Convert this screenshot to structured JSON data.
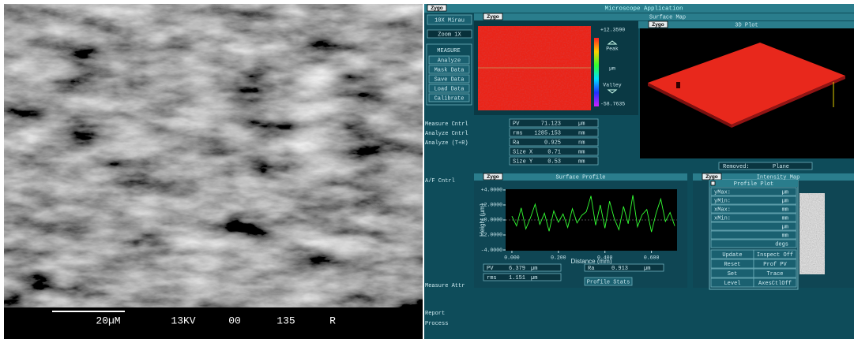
{
  "sem": {
    "labels": [
      "20µM",
      "13KV",
      "00",
      "135",
      "R"
    ]
  },
  "app": {
    "title": "Microscope Application",
    "logo": "Zygo"
  },
  "sidebar": {
    "objective": "10X  Mirau",
    "zoom": "Zoom   1X",
    "measure_group": [
      "MEASURE",
      "Analyze",
      "Mask Data",
      "Save Data",
      "Load Data",
      "Calibrate"
    ],
    "controls": [
      "Measure Cntrl",
      "Analyze Cntrl",
      "Analyze (T+R)",
      "A/F Cntrl",
      "Measure Attr",
      "Report",
      "Process"
    ]
  },
  "surface_map": {
    "title": "Surface Map",
    "scale_max": "+12.3590",
    "peak": "Peak",
    "unit": "µm",
    "valley": "Valley",
    "scale_min": "-58.7635"
  },
  "results": [
    {
      "label": "PV",
      "value": 71.123,
      "unit": "µm"
    },
    {
      "label": "rms",
      "value": 1285.153,
      "unit": "nm"
    },
    {
      "label": "Ra",
      "value": 0.925,
      "unit": "nm"
    },
    {
      "label": "Size X",
      "value": 0.71,
      "unit": "mm"
    },
    {
      "label": "Size Y",
      "value": 0.53,
      "unit": "mm"
    }
  ],
  "plot3d": {
    "title": "3D Plot"
  },
  "removed": {
    "label": "Removed:",
    "value": "Plane"
  },
  "surface_profile": {
    "title": "Surface Profile",
    "ylabel": "Height (µm)",
    "xlabel": "Distance (mm)",
    "xlim": [
      -0.027,
      0.71
    ],
    "ylim": [
      -4.1,
      4.1
    ],
    "xticks": [
      {
        "value": 0,
        "label": "0.000"
      },
      {
        "value": 0.2,
        "label": "0.200"
      },
      {
        "value": 0.4,
        "label": "0.400"
      },
      {
        "value": 0.6,
        "label": "0.600"
      }
    ],
    "yticks": [
      {
        "value": 4,
        "label": "+4.0000"
      },
      {
        "value": 2,
        "label": "+2.0000"
      },
      {
        "value": 0,
        "label": "+0.0000"
      },
      {
        "value": -2,
        "label": "-2.0000"
      },
      {
        "value": -4,
        "label": "-4.0000"
      }
    ],
    "color": "#33ff33",
    "x": [
      0,
      0.02,
      0.04,
      0.06,
      0.08,
      0.1,
      0.12,
      0.14,
      0.16,
      0.18,
      0.2,
      0.22,
      0.24,
      0.26,
      0.28,
      0.3,
      0.32,
      0.34,
      0.36,
      0.38,
      0.4,
      0.42,
      0.44,
      0.46,
      0.48,
      0.5,
      0.52,
      0.54,
      0.56,
      0.58,
      0.6,
      0.62,
      0.64,
      0.66,
      0.68,
      0.7
    ],
    "values": [
      0.5,
      -0.8,
      1.6,
      -1.2,
      0.3,
      2.1,
      -0.6,
      0.9,
      -1.5,
      1.2,
      -0.3,
      0.8,
      -1.0,
      1.5,
      -0.4,
      0.6,
      1.1,
      3.2,
      -0.7,
      2.0,
      -1.1,
      2.5,
      0.2,
      -1.3,
      1.8,
      -0.5,
      3.3,
      -0.9,
      0.7,
      1.4,
      -1.6,
      0.9,
      2.8,
      -0.2,
      1.0,
      -0.8
    ],
    "stats": [
      {
        "label": "PV",
        "value": 6.379,
        "unit": "µm"
      },
      {
        "label": "rms",
        "value": 1.151,
        "unit": "µm"
      },
      {
        "label": "Ra",
        "value": 0.913,
        "unit": "µm"
      }
    ],
    "stats_button": "Profile Stats"
  },
  "intensity_map": {
    "title": "Intensity Map"
  },
  "profile_plot": {
    "title": "Profile Plot",
    "fields": [
      {
        "label": "yMax:",
        "unit": "µm"
      },
      {
        "label": "yMin:",
        "unit": "µm"
      },
      {
        "label": "xMax:",
        "unit": "mm"
      },
      {
        "label": "xMin:",
        "unit": "mm"
      },
      {
        "unit": "µm"
      },
      {
        "unit": "mm"
      },
      {
        "unit": "degs"
      }
    ],
    "buttons": [
      "Update",
      "Inspect Off",
      "Reset",
      "Prof PV",
      "Set",
      "Trace",
      "Level",
      "AxesCtlOff"
    ]
  }
}
